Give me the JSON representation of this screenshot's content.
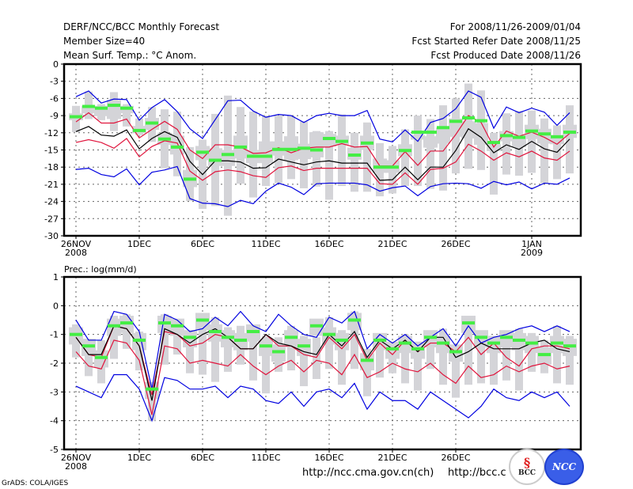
{
  "header": {
    "title": "DERF/NCC/BCC Monthly Forecast",
    "member_size": "Member Size=40",
    "variable": "Mean Surf. Temp.: °C Anom.",
    "period": "For 2008/11/26-2009/01/04",
    "started": "Fcst Started Refer Date 2008/11/25",
    "produced": "Fcst Produced Date 2008/11/26"
  },
  "footer": {
    "url_ch": "http://ncc.cma.gov.cn(ch)",
    "url_bcc": "http://bcc.c",
    "grads": "GrADS: COLA/IGES",
    "logo_bcc": "BCC",
    "logo_ncc": "NCC"
  },
  "colors": {
    "ensemble_mean": "#000000",
    "spread_inner": "#e0143c",
    "spread_outer": "#0000e0",
    "box": "#d4d4d8",
    "median": "#44ee44",
    "grid": "#666666"
  },
  "chart_data": [
    {
      "type": "line",
      "title": "Mean Surf. Temp.: °C Anom.",
      "xlabel": "",
      "ylabel": "",
      "ylim": [
        -30,
        0
      ],
      "yticks": [
        0,
        -3,
        -6,
        -9,
        -12,
        -15,
        -18,
        -21,
        -24,
        -27,
        -30
      ],
      "ytick_labels": [
        "0",
        "-3",
        "-6",
        "-9",
        "-12",
        "-15",
        "-18",
        "-21",
        "-24",
        "-27",
        "-30"
      ],
      "xtick_days": [
        0,
        5,
        10,
        15,
        20,
        25,
        30,
        36
      ],
      "xtick_labels": [
        "26NOV",
        "1DEC",
        "6DEC",
        "11DEC",
        "16DEC",
        "21DEC",
        "26DEC",
        "1JAN"
      ],
      "xtick_sublabels": [
        "2008",
        "",
        "",
        "",
        "",
        "",
        "",
        "2009"
      ],
      "grid": true,
      "n_days": 40,
      "series": [
        {
          "name": "max",
          "color": "blue",
          "values": [
            -5.7,
            -4.7,
            -6.8,
            -6.1,
            -6.2,
            -9.8,
            -7.6,
            -6.2,
            -8.3,
            -11.3,
            -13.0,
            -9.7,
            -6.4,
            -6.3,
            -8.2,
            -9.3,
            -8.8,
            -9.0,
            -10.2,
            -9.0,
            -8.6,
            -9.0,
            -9.0,
            -8.1,
            -13.1,
            -13.6,
            -11.5,
            -13.5,
            -10.2,
            -9.5,
            -7.8,
            -4.7,
            -5.8,
            -11.2,
            -7.5,
            -8.5,
            -7.7,
            -8.4,
            -10.7,
            -8.5
          ]
        },
        {
          "name": "upper",
          "color": "red",
          "values": [
            -10.1,
            -8.5,
            -10.3,
            -10.3,
            -9.6,
            -12.9,
            -11.4,
            -10.0,
            -11.4,
            -15.0,
            -16.5,
            -14.1,
            -14.1,
            -14.5,
            -15.6,
            -15.5,
            -14.6,
            -15.5,
            -14.7,
            -14.5,
            -14.5,
            -13.9,
            -14.5,
            -14.4,
            -17.8,
            -17.8,
            -15.3,
            -17.7,
            -15.2,
            -15.2,
            -12.3,
            -9.0,
            -10.2,
            -14.5,
            -11.7,
            -12.6,
            -11.9,
            -12.8,
            -14.0,
            -12.1
          ]
        },
        {
          "name": "mean",
          "color": "black",
          "values": [
            -11.8,
            -10.9,
            -12.4,
            -12.6,
            -11.5,
            -14.8,
            -13.0,
            -11.8,
            -12.8,
            -17.0,
            -19.3,
            -16.9,
            -16.9,
            -17.1,
            -18.2,
            -18.1,
            -16.6,
            -17.1,
            -17.6,
            -17.1,
            -16.9,
            -17.3,
            -17.3,
            -17.3,
            -20.3,
            -20.2,
            -18.0,
            -20.2,
            -18.0,
            -18.0,
            -15.1,
            -11.3,
            -12.8,
            -15.5,
            -14.1,
            -14.9,
            -13.5,
            -14.8,
            -15.4,
            -13.1
          ]
        },
        {
          "name": "lower",
          "color": "red",
          "values": [
            -13.7,
            -13.2,
            -13.7,
            -14.7,
            -13.0,
            -16.2,
            -14.4,
            -13.4,
            -13.8,
            -18.7,
            -20.3,
            -18.8,
            -18.5,
            -18.8,
            -19.5,
            -19.8,
            -18.1,
            -17.8,
            -18.6,
            -18.2,
            -18.2,
            -18.2,
            -18.2,
            -18.2,
            -20.9,
            -21.0,
            -19.0,
            -21.0,
            -18.4,
            -18.2,
            -17.1,
            -14.0,
            -15.2,
            -16.8,
            -15.5,
            -16.2,
            -15.2,
            -16.4,
            -16.8,
            -15.2
          ]
        },
        {
          "name": "min",
          "color": "blue",
          "values": [
            -18.4,
            -18.2,
            -19.3,
            -19.7,
            -18.3,
            -21.1,
            -18.9,
            -18.5,
            -17.9,
            -23.5,
            -24.3,
            -24.4,
            -24.9,
            -23.8,
            -24.4,
            -22.2,
            -20.8,
            -21.5,
            -22.8,
            -20.9,
            -20.8,
            -20.8,
            -20.8,
            -21.1,
            -22.2,
            -21.6,
            -21.3,
            -23.0,
            -21.4,
            -20.9,
            -20.8,
            -20.9,
            -21.7,
            -20.5,
            -21.1,
            -20.6,
            -21.8,
            -20.8,
            -21.0,
            -19.9
          ]
        },
        {
          "name": "median",
          "color": "green",
          "values": [
            -9.2,
            -7.4,
            -7.7,
            -7.2,
            -7.7,
            -11.6,
            -10.3,
            -13.1,
            -14.5,
            -20.1,
            -15.4,
            -16.8,
            -15.8,
            -14.5,
            -16.1,
            -16.1,
            -14.9,
            -14.9,
            -14.7,
            -15.0,
            -13.0,
            -13.5,
            -15.9,
            -13.8,
            -18.0,
            -18.0,
            -15.1,
            -11.9,
            -11.9,
            -11.1,
            -10.0,
            -9.4,
            -9.9,
            -13.7,
            -12.5,
            -12.8,
            -11.7,
            -12.2,
            -12.7,
            -11.9
          ]
        },
        {
          "name": "box_q1",
          "color": "grey",
          "values": [
            -8.6,
            -7.3,
            -7.3,
            -6.3,
            -7.3,
            -10.8,
            -9.4,
            -12.0,
            -12.5,
            -18.5,
            -14.3,
            -14.7,
            -15.0,
            -12.5,
            -15.0,
            -13.5,
            -13.5,
            -12.6,
            -13.9,
            -11.9,
            -12.2,
            -12.5,
            -14.6,
            -12.5,
            -16.5,
            -16.8,
            -14.0,
            -12.4,
            -12.6,
            -11.1,
            -9.5,
            -10.0,
            -10.3,
            -14.0,
            -11.7,
            -12.3,
            -10.6,
            -11.3,
            -12.4,
            -10.6
          ]
        },
        {
          "name": "box_q3",
          "color": "grey",
          "values": [
            -9.8,
            -8.6,
            -9.1,
            -9.6,
            -8.6,
            -12.1,
            -11.5,
            -14.1,
            -15.8,
            -21.5,
            -16.8,
            -17.8,
            -17.8,
            -16.5,
            -17.3,
            -17.3,
            -16.0,
            -16.8,
            -16.6,
            -16.3,
            -14.4,
            -14.1,
            -16.7,
            -15.0,
            -19.0,
            -19.0,
            -16.1,
            -13.2,
            -14.6,
            -13.9,
            -12.7,
            -13.0,
            -14.1,
            -15.2,
            -13.5,
            -14.5,
            -13.1,
            -13.9,
            -14.0,
            -12.9
          ]
        },
        {
          "name": "box_min",
          "color": "grey",
          "values": [
            -11.9,
            -9.6,
            -9.8,
            -11.7,
            -10.9,
            -12.4,
            -13.6,
            -18.2,
            -19.6,
            -23.9,
            -25.3,
            -24.8,
            -26.5,
            -20.9,
            -23.3,
            -21.3,
            -20.8,
            -20.1,
            -21.7,
            -21.4,
            -23.7,
            -21.3,
            -22.3,
            -22.3,
            -23.1,
            -22.6,
            -21.3,
            -21.3,
            -21.8,
            -22.1,
            -19.1,
            -18.3,
            -18.5,
            -22.8,
            -19.3,
            -19.5,
            -19.0,
            -20.8,
            -20.1,
            -19.1
          ]
        },
        {
          "name": "box_max",
          "color": "grey",
          "values": [
            -7.3,
            -4.8,
            -7.0,
            -4.9,
            -7.0,
            -9.5,
            -7.5,
            -7.9,
            -8.3,
            -14.5,
            -13.2,
            -8.7,
            -5.5,
            -7.5,
            -8.3,
            -9.0,
            -9.0,
            -9.1,
            -10.0,
            -11.7,
            -11.7,
            -8.8,
            -12.0,
            -10.2,
            -13.8,
            -14.3,
            -11.4,
            -9.0,
            -9.6,
            -7.2,
            -6.0,
            -3.4,
            -4.6,
            -12.0,
            -8.6,
            -8.2,
            -8.1,
            -9.5,
            -10.7,
            -7.2
          ]
        }
      ]
    },
    {
      "type": "line",
      "title": "Prec.: log(mm/d)",
      "xlabel": "",
      "ylabel": "",
      "ylim": [
        -5,
        1
      ],
      "yticks": [
        1,
        0,
        -1,
        -2,
        -3,
        -4,
        -5
      ],
      "ytick_labels": [
        "1",
        "0",
        "-1",
        "-2",
        "-3",
        "-4",
        "-5"
      ],
      "xtick_days": [
        0,
        5,
        10,
        15,
        20,
        25,
        30
      ],
      "xtick_labels": [
        "26NOV",
        "1DEC",
        "6DEC",
        "11DEC",
        "16DEC",
        "21DEC",
        "26DEC"
      ],
      "xtick_sublabels": [
        "2008",
        "",
        "",
        "",
        "",
        "",
        ""
      ],
      "grid": true,
      "n_days": 40,
      "series": [
        {
          "name": "max",
          "color": "blue",
          "values": [
            -0.5,
            -1.2,
            -1.2,
            -0.2,
            -0.3,
            -0.9,
            -2.9,
            -0.3,
            -0.5,
            -0.9,
            -0.8,
            -0.4,
            -0.7,
            -0.2,
            -0.7,
            -0.9,
            -0.3,
            -0.7,
            -1.0,
            -1.1,
            -0.4,
            -0.6,
            -0.2,
            -1.5,
            -1.0,
            -1.3,
            -1.0,
            -1.4,
            -1.1,
            -0.8,
            -1.4,
            -0.7,
            -1.3,
            -1.1,
            -1.0,
            -0.8,
            -0.7,
            -0.9,
            -0.7,
            -0.9
          ]
        },
        {
          "name": "upper",
          "color": "red",
          "values": [
            -1.1,
            -1.7,
            -1.8,
            -0.7,
            -0.8,
            -1.4,
            -3.1,
            -0.9,
            -1.0,
            -1.4,
            -1.3,
            -1.0,
            -1.1,
            -1.5,
            -1.5,
            -1.0,
            -1.4,
            -1.4,
            -1.7,
            -1.8,
            -1.1,
            -1.5,
            -1.0,
            -1.9,
            -1.3,
            -1.7,
            -1.2,
            -1.6,
            -1.3,
            -1.3,
            -1.6,
            -1.1,
            -1.7,
            -1.3,
            -1.8,
            -2.1,
            -1.5,
            -1.4,
            -1.4,
            -1.5
          ]
        },
        {
          "name": "mean",
          "color": "black",
          "values": [
            -1.1,
            -1.7,
            -1.7,
            -0.7,
            -0.8,
            -1.4,
            -3.3,
            -0.8,
            -1.0,
            -1.3,
            -1.0,
            -0.8,
            -1.1,
            -1.5,
            -1.5,
            -1.0,
            -1.3,
            -1.4,
            -1.6,
            -1.7,
            -1.0,
            -1.4,
            -0.9,
            -1.8,
            -1.2,
            -1.5,
            -1.2,
            -1.6,
            -1.1,
            -1.1,
            -1.8,
            -1.6,
            -1.3,
            -1.5,
            -1.5,
            -1.5,
            -1.3,
            -1.2,
            -1.5,
            -1.6
          ]
        },
        {
          "name": "lower",
          "color": "red",
          "values": [
            -1.6,
            -2.1,
            -2.2,
            -1.2,
            -1.3,
            -1.9,
            -3.8,
            -1.4,
            -1.5,
            -2.0,
            -1.9,
            -2.0,
            -2.1,
            -1.7,
            -2.1,
            -2.4,
            -2.1,
            -1.9,
            -2.3,
            -1.9,
            -2.0,
            -2.4,
            -1.7,
            -2.5,
            -2.3,
            -2.0,
            -2.2,
            -2.3,
            -2.0,
            -2.4,
            -2.7,
            -2.1,
            -2.5,
            -2.4,
            -2.1,
            -2.3,
            -2.1,
            -2.0,
            -2.2,
            -2.1
          ]
        },
        {
          "name": "min",
          "color": "blue",
          "values": [
            -2.8,
            -3.0,
            -3.2,
            -2.4,
            -2.4,
            -2.9,
            -4.0,
            -2.5,
            -2.6,
            -2.9,
            -2.9,
            -2.8,
            -3.2,
            -2.8,
            -2.9,
            -3.3,
            -3.4,
            -3.0,
            -3.5,
            -3.0,
            -2.9,
            -3.2,
            -2.7,
            -3.6,
            -3.0,
            -3.3,
            -3.3,
            -3.6,
            -3.0,
            -3.3,
            -3.6,
            -3.9,
            -3.5,
            -2.9,
            -3.2,
            -3.3,
            -3.0,
            -3.2,
            -3.0,
            -3.5
          ]
        },
        {
          "name": "median",
          "color": "green",
          "values": [
            -1.0,
            -1.4,
            -1.8,
            -0.7,
            -0.6,
            -1.2,
            -2.9,
            -0.6,
            -0.7,
            -1.1,
            -0.5,
            -0.9,
            -1.1,
            -1.2,
            -0.9,
            -1.4,
            -1.6,
            -1.1,
            -1.4,
            -0.7,
            -1.0,
            -1.2,
            -0.5,
            -1.9,
            -1.2,
            -1.5,
            -1.3,
            -1.5,
            -1.1,
            -1.3,
            -1.6,
            -0.6,
            -1.1,
            -1.3,
            -1.1,
            -1.2,
            -1.3,
            -1.7,
            -1.3,
            -1.4
          ]
        }
      ]
    }
  ]
}
